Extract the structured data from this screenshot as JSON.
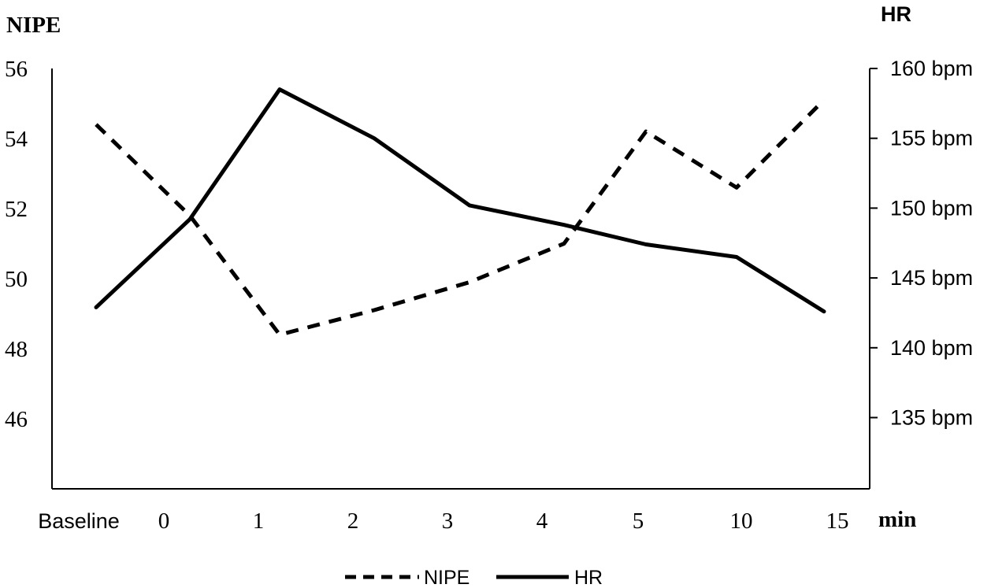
{
  "chart_data": {
    "type": "line",
    "title": "",
    "categories": [
      "Baseline",
      "0",
      "1",
      "2",
      "3",
      "4",
      "5",
      "10",
      "15"
    ],
    "xlabel": "min",
    "left_axis": {
      "label": "NIPE",
      "ticks": [
        "56",
        "54",
        "52",
        "50",
        "48",
        "46"
      ],
      "tick_values": [
        56,
        54,
        52,
        50,
        48,
        46
      ],
      "range": [
        44,
        56
      ]
    },
    "right_axis": {
      "label": "HR",
      "ticks": [
        "160 bpm",
        "155 bpm",
        "150 bpm",
        "145 bpm",
        "140 bpm",
        "135 bpm"
      ],
      "tick_values": [
        160,
        155,
        150,
        145,
        140,
        135
      ],
      "range": [
        130,
        160
      ]
    },
    "series": [
      {
        "name": "NIPE",
        "axis": "left",
        "style": "dashed",
        "color": "#000000",
        "values": [
          54.4,
          51.8,
          48.4,
          49.1,
          49.9,
          51.0,
          54.2,
          52.6,
          55.1
        ]
      },
      {
        "name": "HR",
        "axis": "right",
        "style": "solid",
        "color": "#000000",
        "values": [
          142.9,
          149.2,
          158.5,
          155.0,
          150.2,
          148.8,
          147.4,
          146.5,
          142.6
        ]
      }
    ],
    "legend": {
      "position": "bottom-center",
      "items": [
        "NIPE",
        "HR"
      ]
    },
    "grid": false
  }
}
